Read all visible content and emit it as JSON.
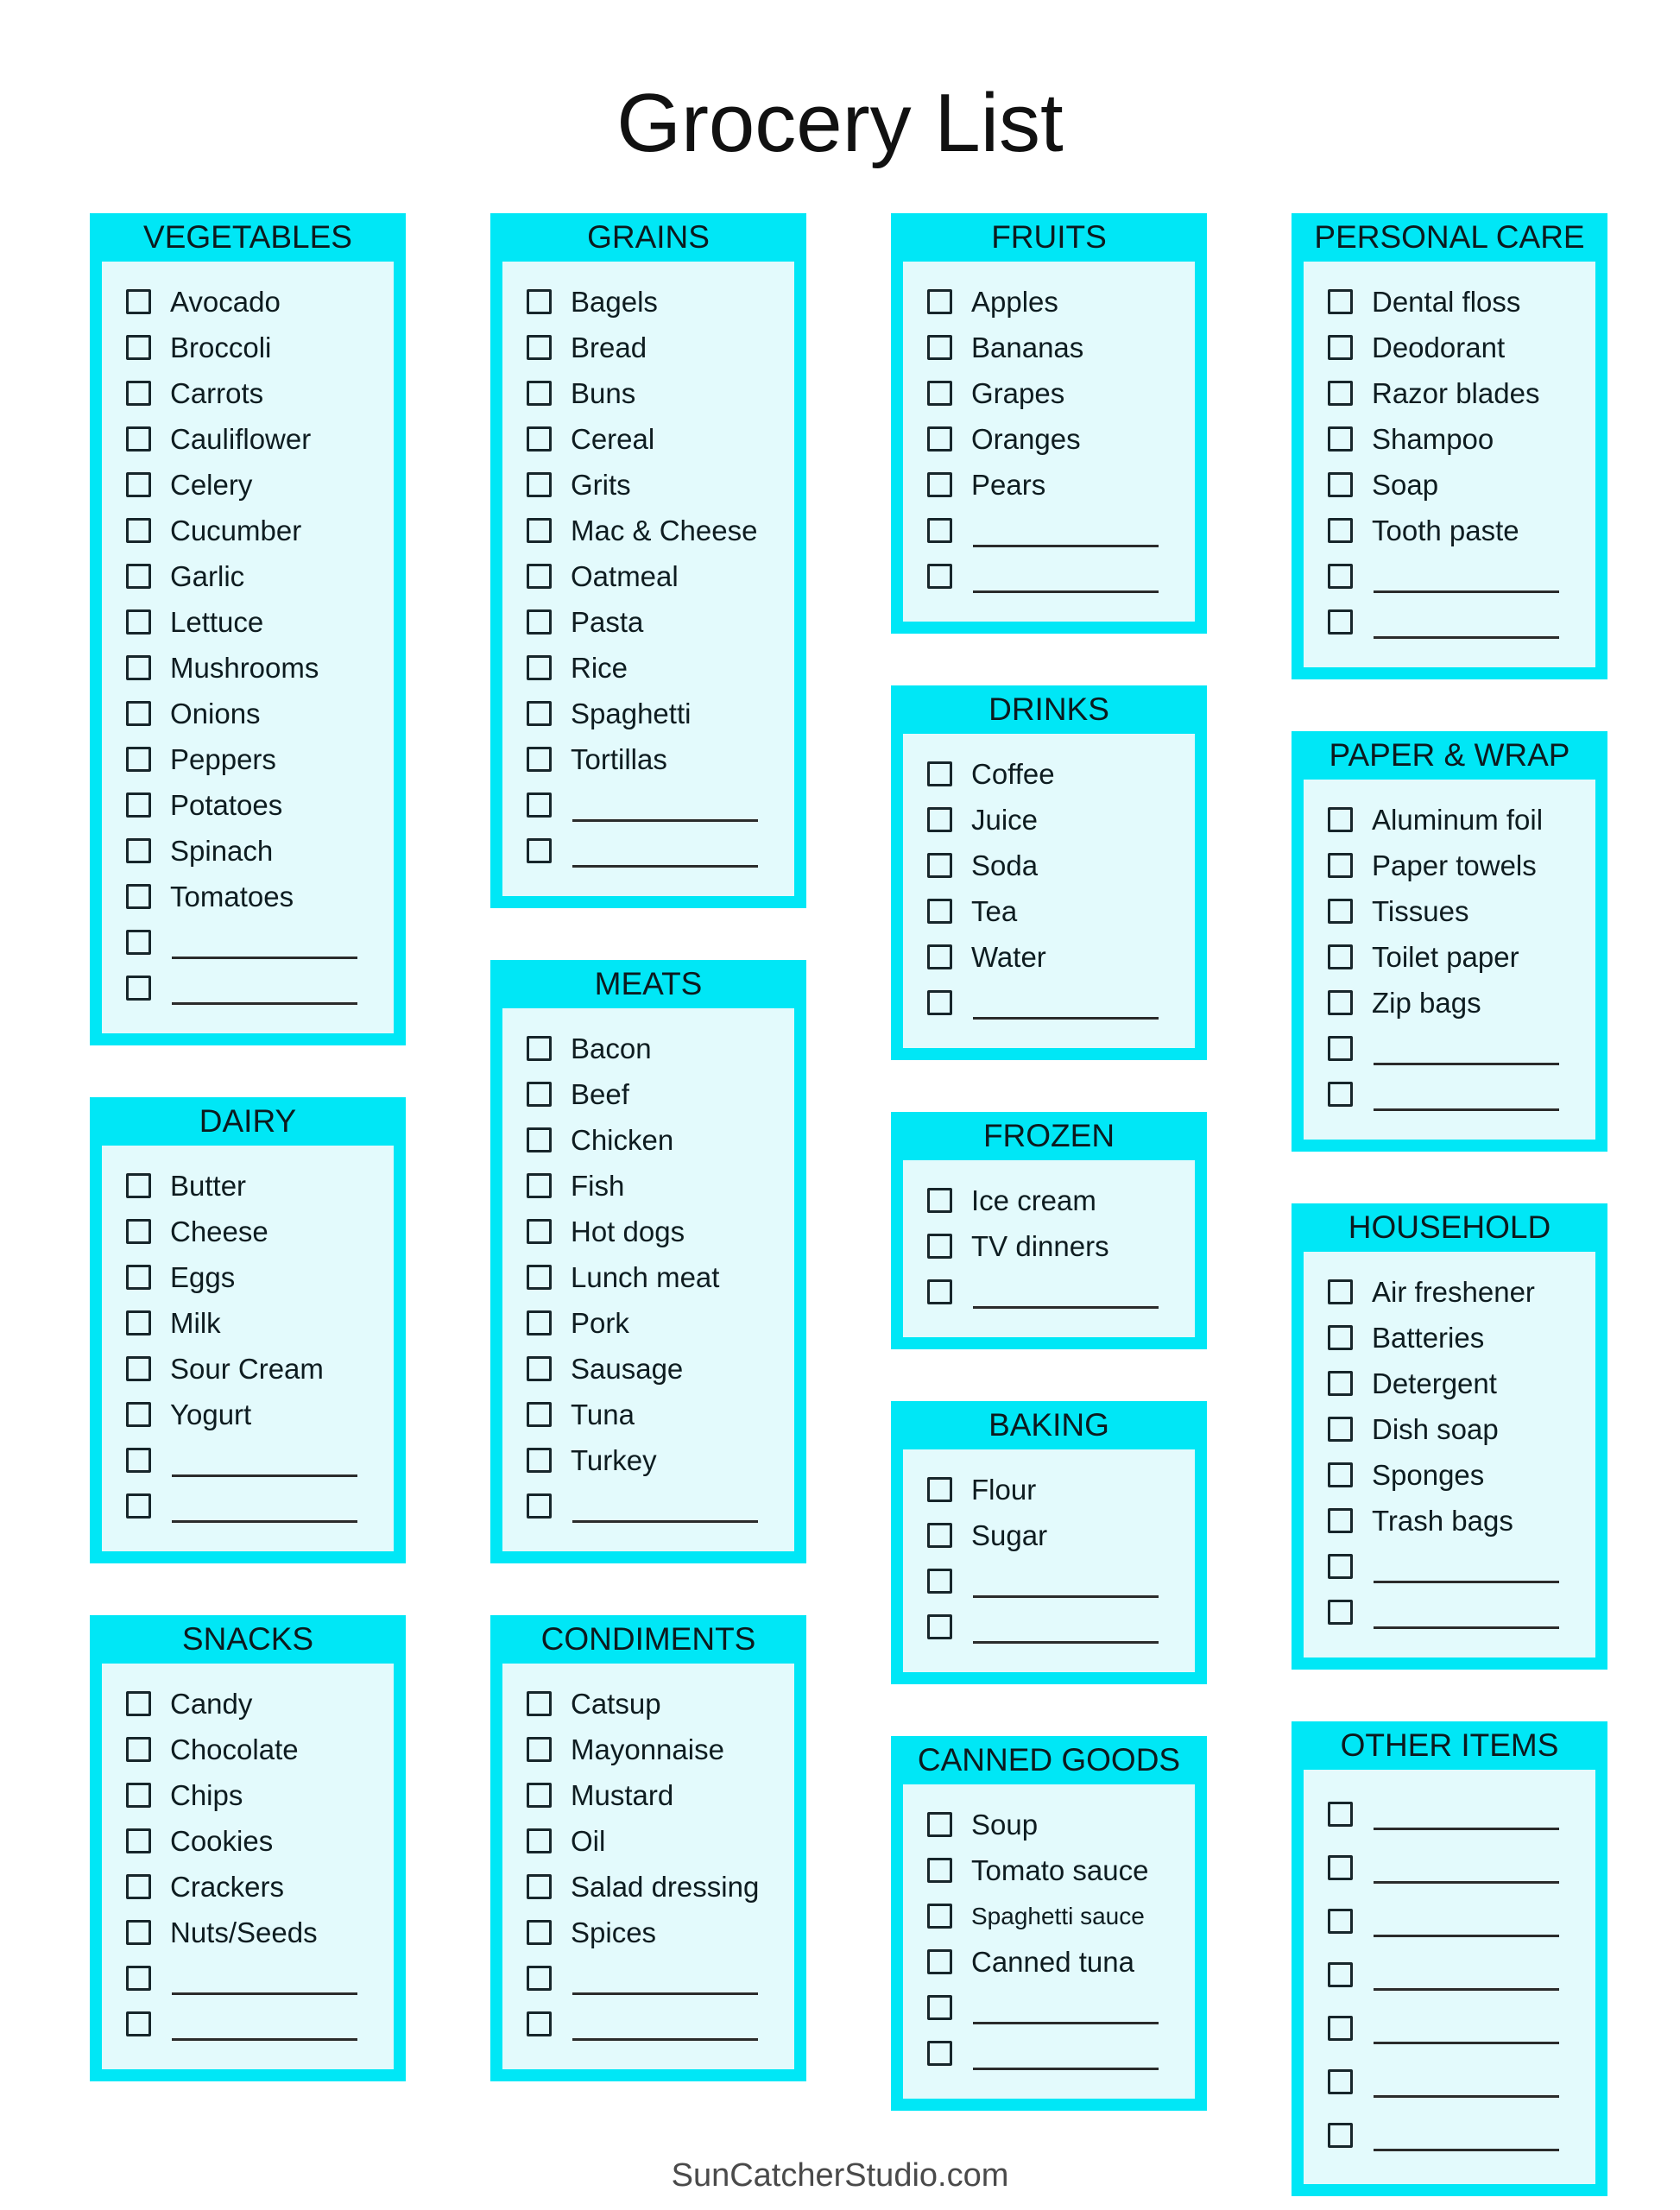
{
  "title": "Grocery List",
  "footer": "SunCatcherStudio.com",
  "colors": {
    "accent": "#00e7f6",
    "panel": "#e3fafc",
    "ink": "#101d21",
    "footer_ink": "#4a4a4a"
  },
  "columns": [
    {
      "boxes": [
        {
          "title": "VEGETABLES",
          "items": [
            "Avocado",
            "Broccoli",
            "Carrots",
            "Cauliflower",
            "Celery",
            "Cucumber",
            "Garlic",
            "Lettuce",
            "Mushrooms",
            "Onions",
            "Peppers",
            "Potatoes",
            "Spinach",
            "Tomatoes"
          ],
          "blank_rows": 2
        },
        {
          "title": "DAIRY",
          "items": [
            "Butter",
            "Cheese",
            "Eggs",
            "Milk",
            "Sour Cream",
            "Yogurt"
          ],
          "blank_rows": 2
        },
        {
          "title": "SNACKS",
          "items": [
            "Candy",
            "Chocolate",
            "Chips",
            "Cookies",
            "Crackers",
            "Nuts/Seeds"
          ],
          "blank_rows": 2
        }
      ]
    },
    {
      "boxes": [
        {
          "title": "GRAINS",
          "items": [
            "Bagels",
            "Bread",
            "Buns",
            "Cereal",
            "Grits",
            "Mac & Cheese",
            "Oatmeal",
            "Pasta",
            "Rice",
            "Spaghetti",
            "Tortillas"
          ],
          "blank_rows": 2
        },
        {
          "title": "MEATS",
          "items": [
            "Bacon",
            "Beef",
            "Chicken",
            "Fish",
            "Hot dogs",
            "Lunch meat",
            "Pork",
            "Sausage",
            "Tuna",
            "Turkey"
          ],
          "blank_rows": 1
        },
        {
          "title": "CONDIMENTS",
          "items": [
            "Catsup",
            "Mayonnaise",
            "Mustard",
            "Oil",
            "Salad dressing",
            "Spices"
          ],
          "blank_rows": 2
        }
      ]
    },
    {
      "boxes": [
        {
          "title": "FRUITS",
          "items": [
            "Apples",
            "Bananas",
            "Grapes",
            "Oranges",
            "Pears"
          ],
          "blank_rows": 2
        },
        {
          "title": "DRINKS",
          "items": [
            "Coffee",
            "Juice",
            "Soda",
            "Tea",
            "Water"
          ],
          "blank_rows": 1
        },
        {
          "title": "FROZEN",
          "items": [
            "Ice cream",
            "TV dinners"
          ],
          "blank_rows": 1
        },
        {
          "title": "BAKING",
          "items": [
            "Flour",
            "Sugar"
          ],
          "blank_rows": 2
        },
        {
          "title": "CANNED GOODS",
          "items": [
            "Soup",
            "Tomato sauce",
            "Spaghetti sauce",
            "Canned tuna"
          ],
          "blank_rows": 2
        }
      ]
    },
    {
      "boxes": [
        {
          "title": "PERSONAL CARE",
          "items": [
            "Dental floss",
            "Deodorant",
            "Razor blades",
            "Shampoo",
            "Soap",
            "Tooth paste"
          ],
          "blank_rows": 2
        },
        {
          "title": "PAPER & WRAP",
          "items": [
            "Aluminum foil",
            "Paper towels",
            "Tissues",
            "Toilet paper",
            "Zip bags"
          ],
          "blank_rows": 2
        },
        {
          "title": "HOUSEHOLD",
          "items": [
            "Air freshener",
            "Batteries",
            "Detergent",
            "Dish soap",
            "Sponges",
            "Trash bags"
          ],
          "blank_rows": 2
        },
        {
          "title": "OTHER ITEMS",
          "items": [],
          "blank_rows": 7
        }
      ]
    }
  ]
}
